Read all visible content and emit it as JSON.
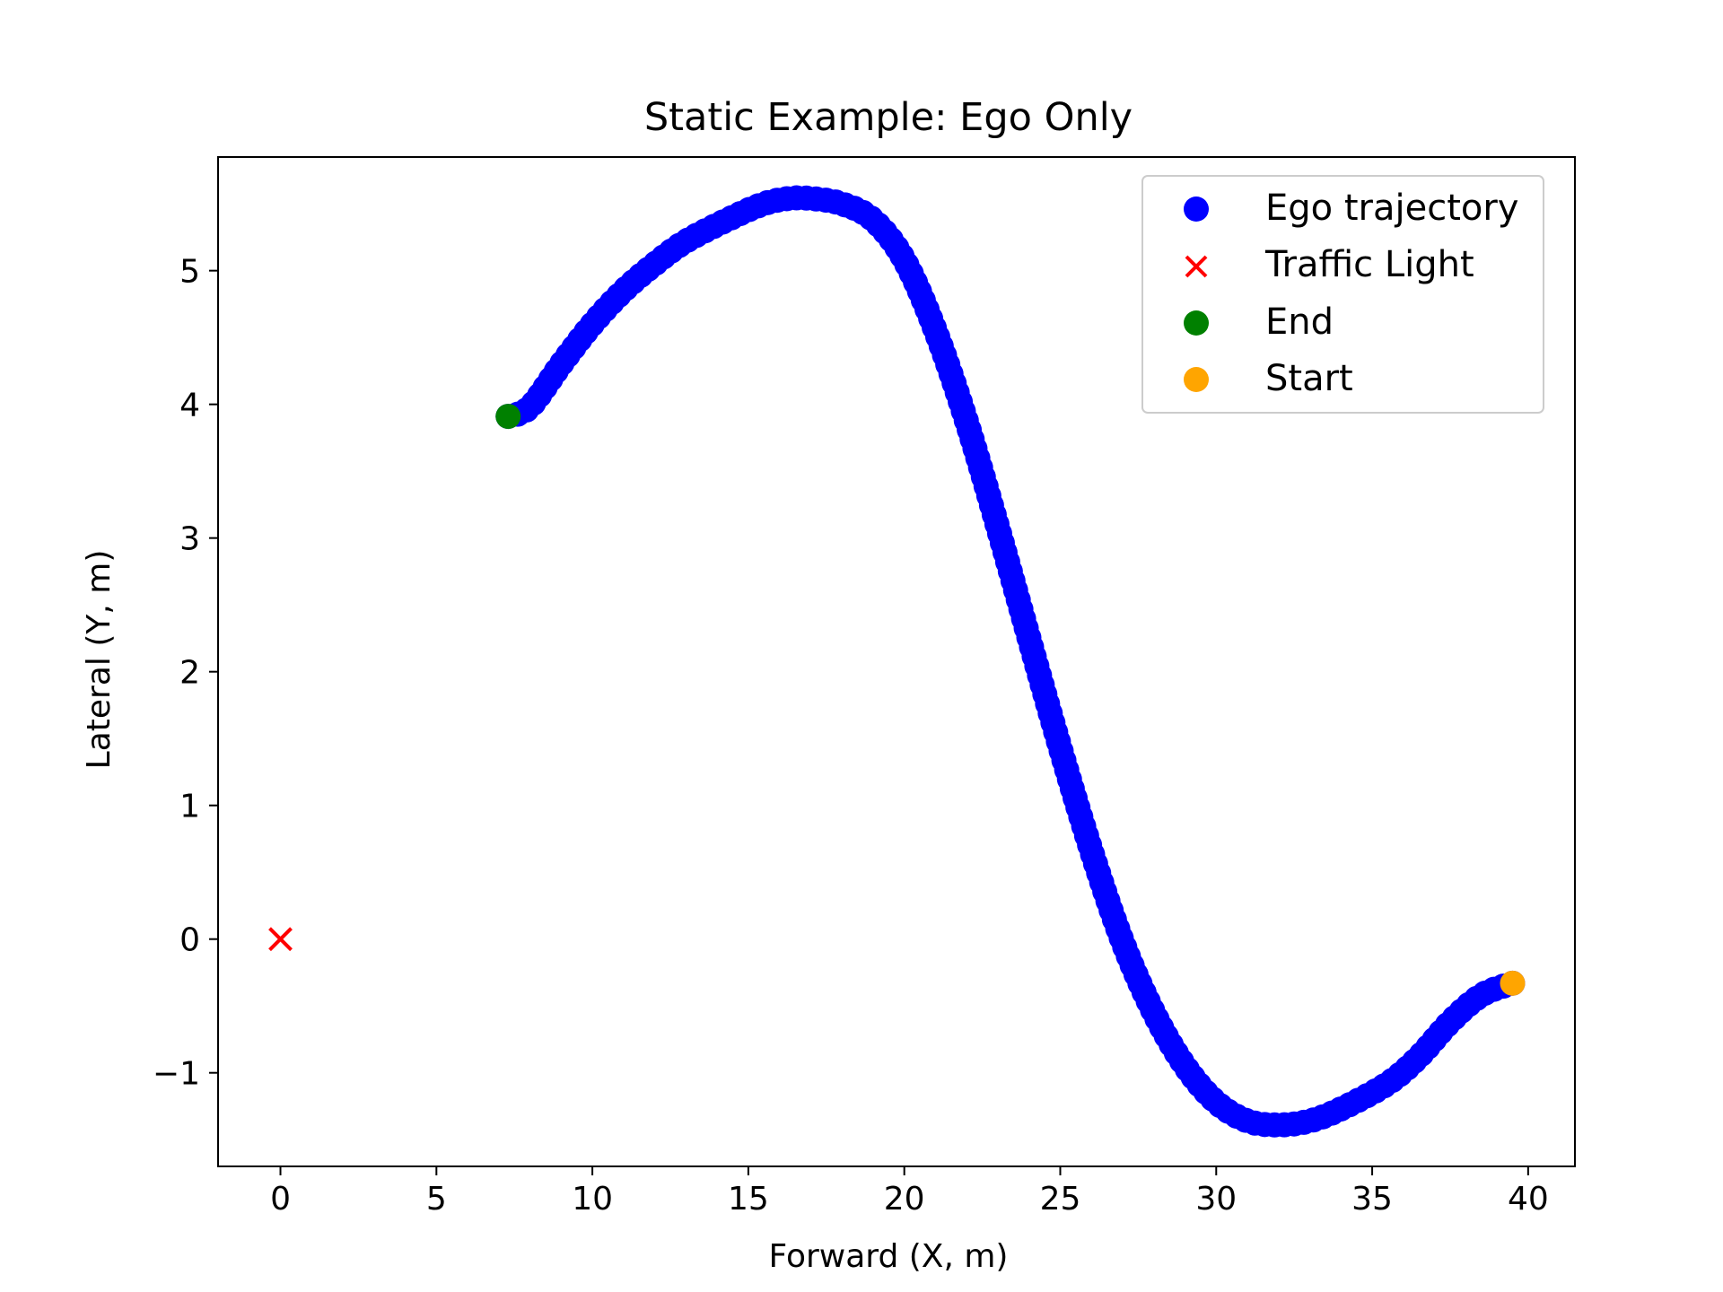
{
  "chart_data": {
    "type": "scatter",
    "title": "Static Example: Ego Only",
    "xlabel": "Forward (X, m)",
    "ylabel": "Lateral (Y, m)",
    "xlim": [
      -2,
      41.5
    ],
    "ylim": [
      -1.7,
      5.85
    ],
    "xticks": [
      0,
      5,
      10,
      15,
      20,
      25,
      30,
      35,
      40
    ],
    "yticks": [
      -1,
      0,
      1,
      2,
      3,
      4,
      5
    ],
    "ytick_labels": [
      "−1",
      "0",
      "1",
      "2",
      "3",
      "4",
      "5"
    ],
    "grid": false,
    "legend_position": "top-right",
    "trajectory_keypoints": [
      [
        39.5,
        -0.33
      ],
      [
        38.5,
        -0.42
      ],
      [
        37.5,
        -0.62
      ],
      [
        36.5,
        -0.88
      ],
      [
        35.5,
        -1.08
      ],
      [
        34.0,
        -1.27
      ],
      [
        33.0,
        -1.36
      ],
      [
        32.0,
        -1.39
      ],
      [
        31.0,
        -1.36
      ],
      [
        30.0,
        -1.22
      ],
      [
        29.0,
        -0.95
      ],
      [
        28.0,
        -0.55
      ],
      [
        27.0,
        -0.02
      ],
      [
        26.0,
        0.66
      ],
      [
        25.0,
        1.43
      ],
      [
        24.0,
        2.25
      ],
      [
        23.0,
        3.08
      ],
      [
        22.0,
        3.87
      ],
      [
        21.0,
        4.55
      ],
      [
        20.0,
        5.08
      ],
      [
        19.0,
        5.38
      ],
      [
        18.0,
        5.5
      ],
      [
        17.0,
        5.54
      ],
      [
        16.3,
        5.54
      ],
      [
        15.5,
        5.5
      ],
      [
        14.5,
        5.4
      ],
      [
        13.0,
        5.22
      ],
      [
        12.0,
        5.05
      ],
      [
        11.0,
        4.85
      ],
      [
        10.0,
        4.6
      ],
      [
        9.0,
        4.3
      ],
      [
        8.0,
        3.98
      ],
      [
        7.3,
        3.91
      ]
    ],
    "series": [
      {
        "name": "Ego trajectory",
        "marker": "circle",
        "color": "#0000ff",
        "point_count": 180
      },
      {
        "name": "Traffic Light",
        "marker": "x",
        "color": "#ff0000",
        "x": [
          0
        ],
        "y": [
          0
        ]
      },
      {
        "name": "End",
        "marker": "circle",
        "color": "#008000",
        "x": [
          7.3
        ],
        "y": [
          3.91
        ]
      },
      {
        "name": "Start",
        "marker": "circle",
        "color": "#ffa500",
        "x": [
          39.5
        ],
        "y": [
          -0.33
        ]
      }
    ]
  }
}
